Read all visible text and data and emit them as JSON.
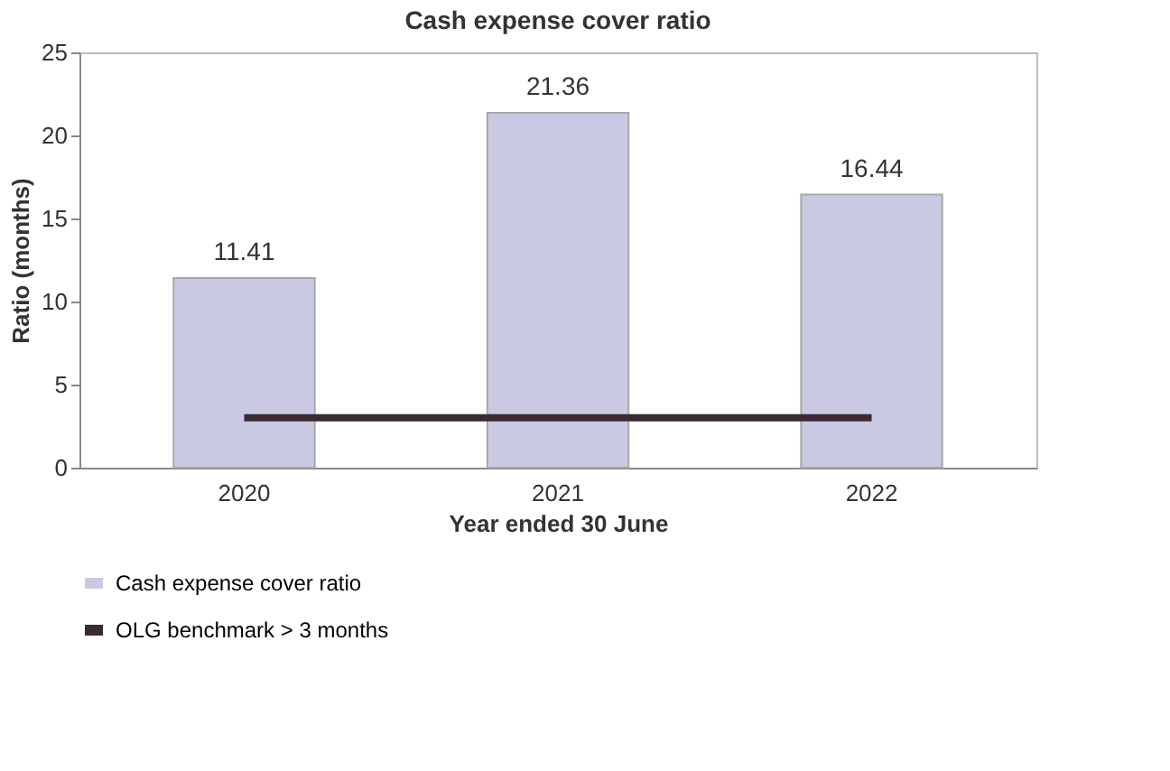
{
  "chart_data": {
    "type": "bar",
    "title": "Cash expense cover ratio",
    "xlabel": "Year ended 30 June",
    "ylabel": "Ratio (months)",
    "categories": [
      "2020",
      "2021",
      "2022"
    ],
    "series": [
      {
        "name": "Cash expense cover ratio",
        "color": "#c9c9e3",
        "values": [
          11.41,
          21.36,
          16.44
        ],
        "value_labels": [
          "11.41",
          "21.36",
          "16.44"
        ]
      },
      {
        "name": "OLG benchmark > 3 months",
        "type": "line",
        "color": "#3b2a33",
        "values": [
          3,
          3,
          3
        ]
      }
    ],
    "ylim": [
      0,
      25
    ],
    "yticks": [
      0,
      5,
      10,
      15,
      20,
      25
    ],
    "legend": "bottom",
    "grid": false
  }
}
